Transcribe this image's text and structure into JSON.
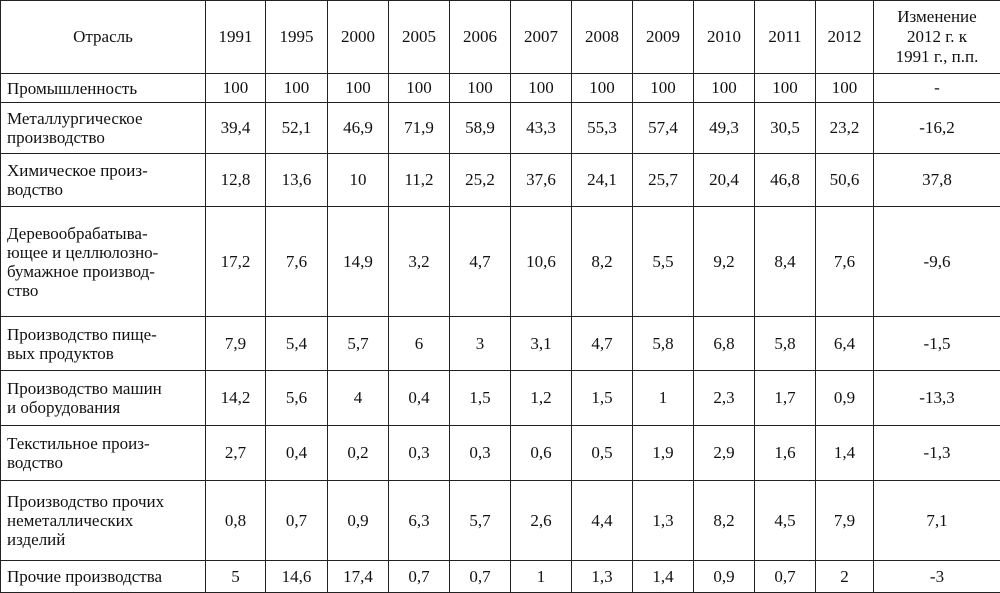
{
  "table": {
    "header": [
      "Отрасль",
      "1991",
      "1995",
      "2000",
      "2005",
      "2006",
      "2007",
      "2008",
      "2009",
      "2010",
      "2011",
      "2012",
      "Изменение\n2012 г. к\n1991 г., п.п."
    ],
    "rows": [
      [
        "Промышленность",
        "100",
        "100",
        "100",
        "100",
        "100",
        "100",
        "100",
        "100",
        "100",
        "100",
        "100",
        "-"
      ],
      [
        "Металлургическое\nпроизводство",
        "39,4",
        "52,1",
        "46,9",
        "71,9",
        "58,9",
        "43,3",
        "55,3",
        "57,4",
        "49,3",
        "30,5",
        "23,2",
        "-16,2"
      ],
      [
        "Химическое произ-\nводство",
        "12,8",
        "13,6",
        "10",
        "11,2",
        "25,2",
        "37,6",
        "24,1",
        "25,7",
        "20,4",
        "46,8",
        "50,6",
        "37,8"
      ],
      [
        "Деревообрабатыва-\nющее и целлюлозно-\nбумажное производ-\nство",
        "17,2",
        "7,6",
        "14,9",
        "3,2",
        "4,7",
        "10,6",
        "8,2",
        "5,5",
        "9,2",
        "8,4",
        "7,6",
        "-9,6"
      ],
      [
        "Производство пище-\nвых продуктов",
        "7,9",
        "5,4",
        "5,7",
        "6",
        "3",
        "3,1",
        "4,7",
        "5,8",
        "6,8",
        "5,8",
        "6,4",
        "-1,5"
      ],
      [
        "Производство машин\nи оборудования",
        "14,2",
        "5,6",
        "4",
        "0,4",
        "1,5",
        "1,2",
        "1,5",
        "1",
        "2,3",
        "1,7",
        "0,9",
        "-13,3"
      ],
      [
        "Текстильное произ-\nводство",
        "2,7",
        "0,4",
        "0,2",
        "0,3",
        "0,3",
        "0,6",
        "0,5",
        "1,9",
        "2,9",
        "1,6",
        "1,4",
        "-1,3"
      ],
      [
        "Производство прочих\nнеметаллических\nизделий",
        "0,8",
        "0,7",
        "0,9",
        "6,3",
        "5,7",
        "2,6",
        "4,4",
        "1,3",
        "8,2",
        "4,5",
        "7,9",
        "7,1"
      ],
      [
        "Прочие производства",
        "5",
        "14,6",
        "17,4",
        "0,7",
        "0,7",
        "1",
        "1,3",
        "1,4",
        "0,9",
        "0,7",
        "2",
        "-3"
      ]
    ]
  }
}
